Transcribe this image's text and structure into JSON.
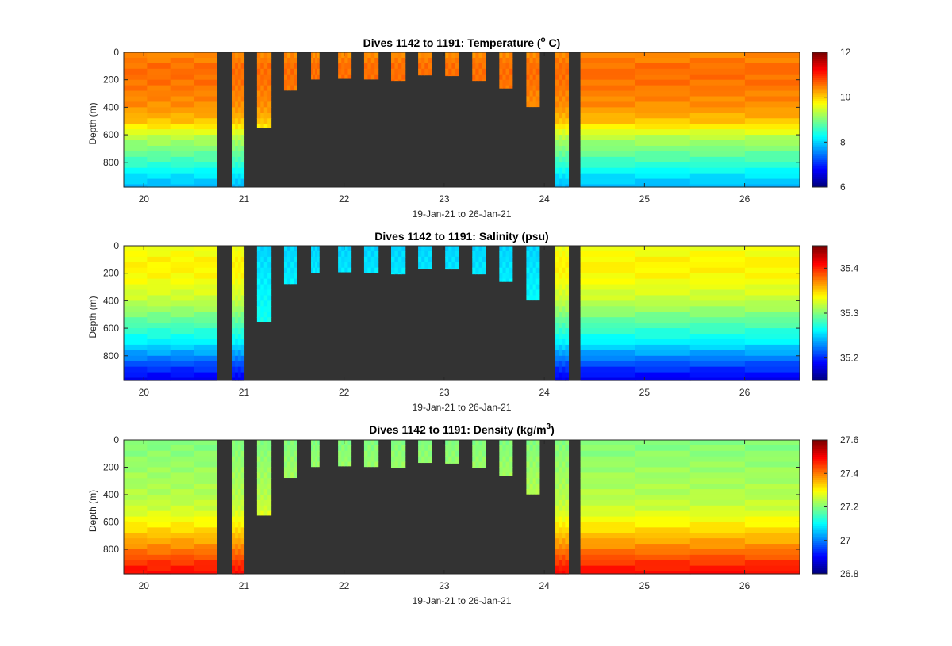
{
  "figure": {
    "background": "#ffffff",
    "void_color": "#333333"
  },
  "chart_data": [
    {
      "type": "heatmap",
      "title_main": "Dives 1142 to 1191: Temperature (",
      "title_sup": "o",
      "title_end": " C)",
      "ylabel": "Depth (m)",
      "xlabel": "19-Jan-21 to 26-Jan-21",
      "xlim": [
        19.8,
        26.55
      ],
      "ylim": [
        0,
        980
      ],
      "y_reversed": true,
      "x_ticks": [
        "20",
        "21",
        "22",
        "23",
        "24",
        "25",
        "26"
      ],
      "y_ticks": [
        "0",
        "200",
        "400",
        "600",
        "800"
      ],
      "colorbar": {
        "min": 6,
        "max": 12,
        "ticks": [
          "6",
          "8",
          "10",
          "12"
        ],
        "colormap": "jet"
      },
      "profiles": [
        {
          "x0": 19.8,
          "x1": 20.73,
          "max_depth": 980,
          "variable": "temperature_full"
        },
        {
          "x0": 20.88,
          "x1": 21.0,
          "max_depth": 980,
          "variable": "temperature_full"
        },
        {
          "x0": 21.13,
          "x1": 21.27,
          "max_depth": 550
        },
        {
          "x0": 21.4,
          "x1": 21.53,
          "max_depth": 275
        },
        {
          "x0": 21.67,
          "x1": 21.75,
          "max_depth": 195
        },
        {
          "x0": 21.94,
          "x1": 22.07,
          "max_depth": 190
        },
        {
          "x0": 22.2,
          "x1": 22.34,
          "max_depth": 195
        },
        {
          "x0": 22.47,
          "x1": 22.61,
          "max_depth": 205
        },
        {
          "x0": 22.74,
          "x1": 22.87,
          "max_depth": 165
        },
        {
          "x0": 23.01,
          "x1": 23.14,
          "max_depth": 170
        },
        {
          "x0": 23.28,
          "x1": 23.41,
          "max_depth": 205
        },
        {
          "x0": 23.55,
          "x1": 23.68,
          "max_depth": 260
        },
        {
          "x0": 23.82,
          "x1": 23.95,
          "max_depth": 395
        },
        {
          "x0": 24.11,
          "x1": 24.24,
          "max_depth": 980
        },
        {
          "x0": 24.36,
          "x1": 26.55,
          "max_depth": 980
        }
      ],
      "value_profile": {
        "depths": [
          0,
          100,
          200,
          300,
          400,
          500,
          550,
          600,
          700,
          800,
          900,
          980
        ],
        "values": [
          10.4,
          10.6,
          10.6,
          10.5,
          10.4,
          10.1,
          9.8,
          9.4,
          9.0,
          8.6,
          8.1,
          7.8
        ]
      }
    },
    {
      "type": "heatmap",
      "title_main": "Dives 1142 to 1191: Salinity (psu)",
      "title_sup": "",
      "title_end": "",
      "ylabel": "Depth (m)",
      "xlabel": "19-Jan-21 to 26-Jan-21",
      "xlim": [
        19.8,
        26.55
      ],
      "ylim": [
        0,
        980
      ],
      "y_reversed": true,
      "x_ticks": [
        "20",
        "21",
        "22",
        "23",
        "24",
        "25",
        "26"
      ],
      "y_ticks": [
        "0",
        "200",
        "400",
        "600",
        "800"
      ],
      "colorbar": {
        "min": 35.15,
        "max": 35.45,
        "ticks": [
          "35.2",
          "35.3",
          "35.4"
        ],
        "colormap": "jet"
      },
      "profiles": [
        {
          "x0": 19.8,
          "x1": 20.73,
          "max_depth": 980
        },
        {
          "x0": 20.88,
          "x1": 21.0,
          "max_depth": 980
        },
        {
          "x0": 21.13,
          "x1": 21.27,
          "max_depth": 550
        },
        {
          "x0": 21.4,
          "x1": 21.53,
          "max_depth": 275
        },
        {
          "x0": 21.67,
          "x1": 21.75,
          "max_depth": 195
        },
        {
          "x0": 21.94,
          "x1": 22.07,
          "max_depth": 190
        },
        {
          "x0": 22.2,
          "x1": 22.34,
          "max_depth": 195
        },
        {
          "x0": 22.47,
          "x1": 22.61,
          "max_depth": 205
        },
        {
          "x0": 22.74,
          "x1": 22.87,
          "max_depth": 165
        },
        {
          "x0": 23.01,
          "x1": 23.14,
          "max_depth": 170
        },
        {
          "x0": 23.28,
          "x1": 23.41,
          "max_depth": 205
        },
        {
          "x0": 23.55,
          "x1": 23.68,
          "max_depth": 260
        },
        {
          "x0": 23.82,
          "x1": 23.95,
          "max_depth": 395
        },
        {
          "x0": 24.11,
          "x1": 24.24,
          "max_depth": 980
        },
        {
          "x0": 24.36,
          "x1": 26.55,
          "max_depth": 980
        }
      ],
      "value_profile": {
        "depths": [
          0,
          100,
          200,
          300,
          400,
          500,
          600,
          700,
          800,
          900,
          980
        ],
        "values": [
          35.33,
          35.34,
          35.34,
          35.33,
          35.32,
          35.3,
          35.28,
          35.26,
          35.23,
          35.2,
          35.18
        ]
      },
      "shallow_dive_value": 35.25
    },
    {
      "type": "heatmap",
      "title_main": "Dives 1142 to 1191: Density (kg/m",
      "title_sup": "3",
      "title_end": ")",
      "ylabel": "Depth (m)",
      "xlabel": "19-Jan-21 to 26-Jan-21",
      "xlim": [
        19.8,
        26.55
      ],
      "ylim": [
        0,
        980
      ],
      "y_reversed": true,
      "x_ticks": [
        "20",
        "21",
        "22",
        "23",
        "24",
        "25",
        "26"
      ],
      "y_ticks": [
        "0",
        "200",
        "400",
        "600",
        "800"
      ],
      "colorbar": {
        "min": 26.8,
        "max": 27.6,
        "ticks": [
          "26.8",
          "27",
          "27.2",
          "27.4",
          "27.6"
        ],
        "colormap": "jet"
      },
      "profiles": [
        {
          "x0": 19.8,
          "x1": 20.73,
          "max_depth": 980
        },
        {
          "x0": 20.88,
          "x1": 21.0,
          "max_depth": 980
        },
        {
          "x0": 21.13,
          "x1": 21.27,
          "max_depth": 550
        },
        {
          "x0": 21.4,
          "x1": 21.53,
          "max_depth": 275
        },
        {
          "x0": 21.67,
          "x1": 21.75,
          "max_depth": 195
        },
        {
          "x0": 21.94,
          "x1": 22.07,
          "max_depth": 190
        },
        {
          "x0": 22.2,
          "x1": 22.34,
          "max_depth": 195
        },
        {
          "x0": 22.47,
          "x1": 22.61,
          "max_depth": 205
        },
        {
          "x0": 22.74,
          "x1": 22.87,
          "max_depth": 165
        },
        {
          "x0": 23.01,
          "x1": 23.14,
          "max_depth": 170
        },
        {
          "x0": 23.28,
          "x1": 23.41,
          "max_depth": 205
        },
        {
          "x0": 23.55,
          "x1": 23.68,
          "max_depth": 260
        },
        {
          "x0": 23.82,
          "x1": 23.95,
          "max_depth": 395
        },
        {
          "x0": 24.11,
          "x1": 24.24,
          "max_depth": 980
        },
        {
          "x0": 24.36,
          "x1": 26.55,
          "max_depth": 980
        }
      ],
      "value_profile": {
        "depths": [
          0,
          100,
          200,
          300,
          400,
          500,
          600,
          700,
          800,
          900,
          980
        ],
        "values": [
          27.2,
          27.21,
          27.22,
          27.23,
          27.24,
          27.26,
          27.3,
          27.35,
          27.4,
          27.46,
          27.5
        ]
      }
    }
  ]
}
